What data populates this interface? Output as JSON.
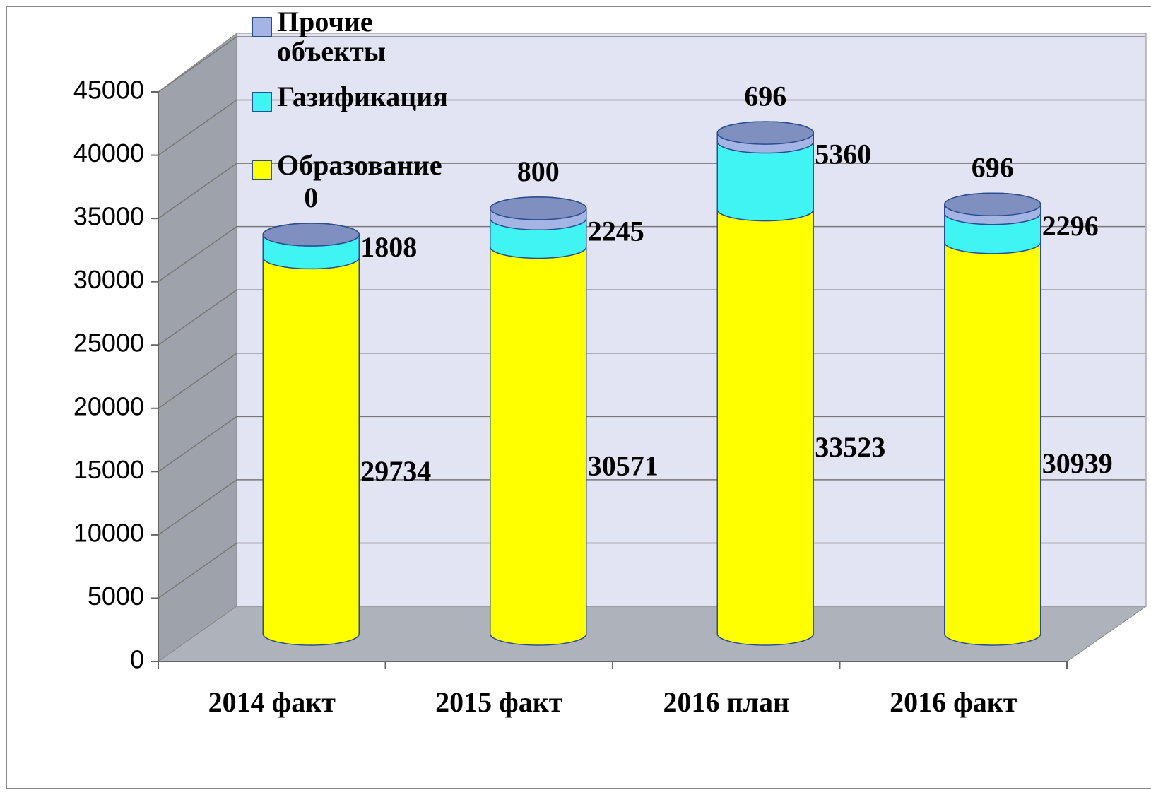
{
  "chart_data": {
    "type": "stacked-cylinder",
    "categories": [
      "2014 факт",
      "2015 факт",
      "2016 план",
      "2016 факт"
    ],
    "series": [
      {
        "name": "Образование",
        "color": "#ffff00",
        "values": [
          29734,
          30571,
          33523,
          30939
        ]
      },
      {
        "name": "Газификация",
        "color": "#40f4f4",
        "values": [
          1808,
          2245,
          5360,
          2296
        ]
      },
      {
        "name": "Прочие объекты",
        "color": "#a4b4e4",
        "values": [
          0,
          800,
          696,
          696
        ]
      }
    ],
    "ylim": [
      0,
      45000
    ],
    "yticks": [
      0,
      5000,
      10000,
      15000,
      20000,
      25000,
      30000,
      35000,
      40000,
      45000
    ],
    "grid": true
  }
}
